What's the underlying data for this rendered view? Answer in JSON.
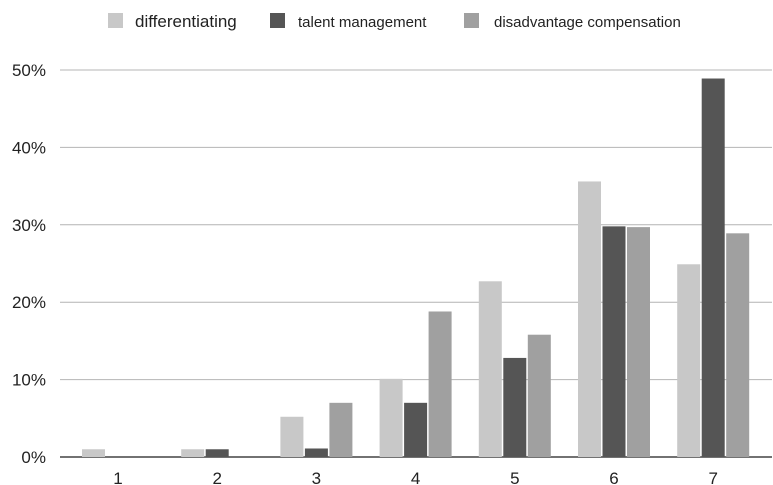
{
  "chart_data": {
    "type": "bar",
    "title": "",
    "xlabel": "",
    "ylabel": "",
    "categories": [
      "1",
      "2",
      "3",
      "4",
      "5",
      "6",
      "7"
    ],
    "ylim": [
      0,
      50
    ],
    "yticks": [
      0,
      10,
      20,
      30,
      40,
      50
    ],
    "ytick_labels": [
      "0%",
      "10%",
      "20%",
      "30%",
      "40%",
      "50%"
    ],
    "grid": true,
    "legend_position": "top",
    "series": [
      {
        "name": "differentiating",
        "color": "#c8c8c8",
        "values": [
          1,
          1,
          5.2,
          10.1,
          22.7,
          35.6,
          24.9
        ]
      },
      {
        "name": "talent management",
        "color": "#555555",
        "values": [
          0,
          1,
          1.1,
          7,
          12.8,
          29.8,
          48.9
        ]
      },
      {
        "name": "disadvantage compensation",
        "color": "#a0a0a0",
        "values": [
          0,
          0,
          7,
          18.8,
          15.8,
          29.7,
          28.9
        ]
      }
    ]
  }
}
